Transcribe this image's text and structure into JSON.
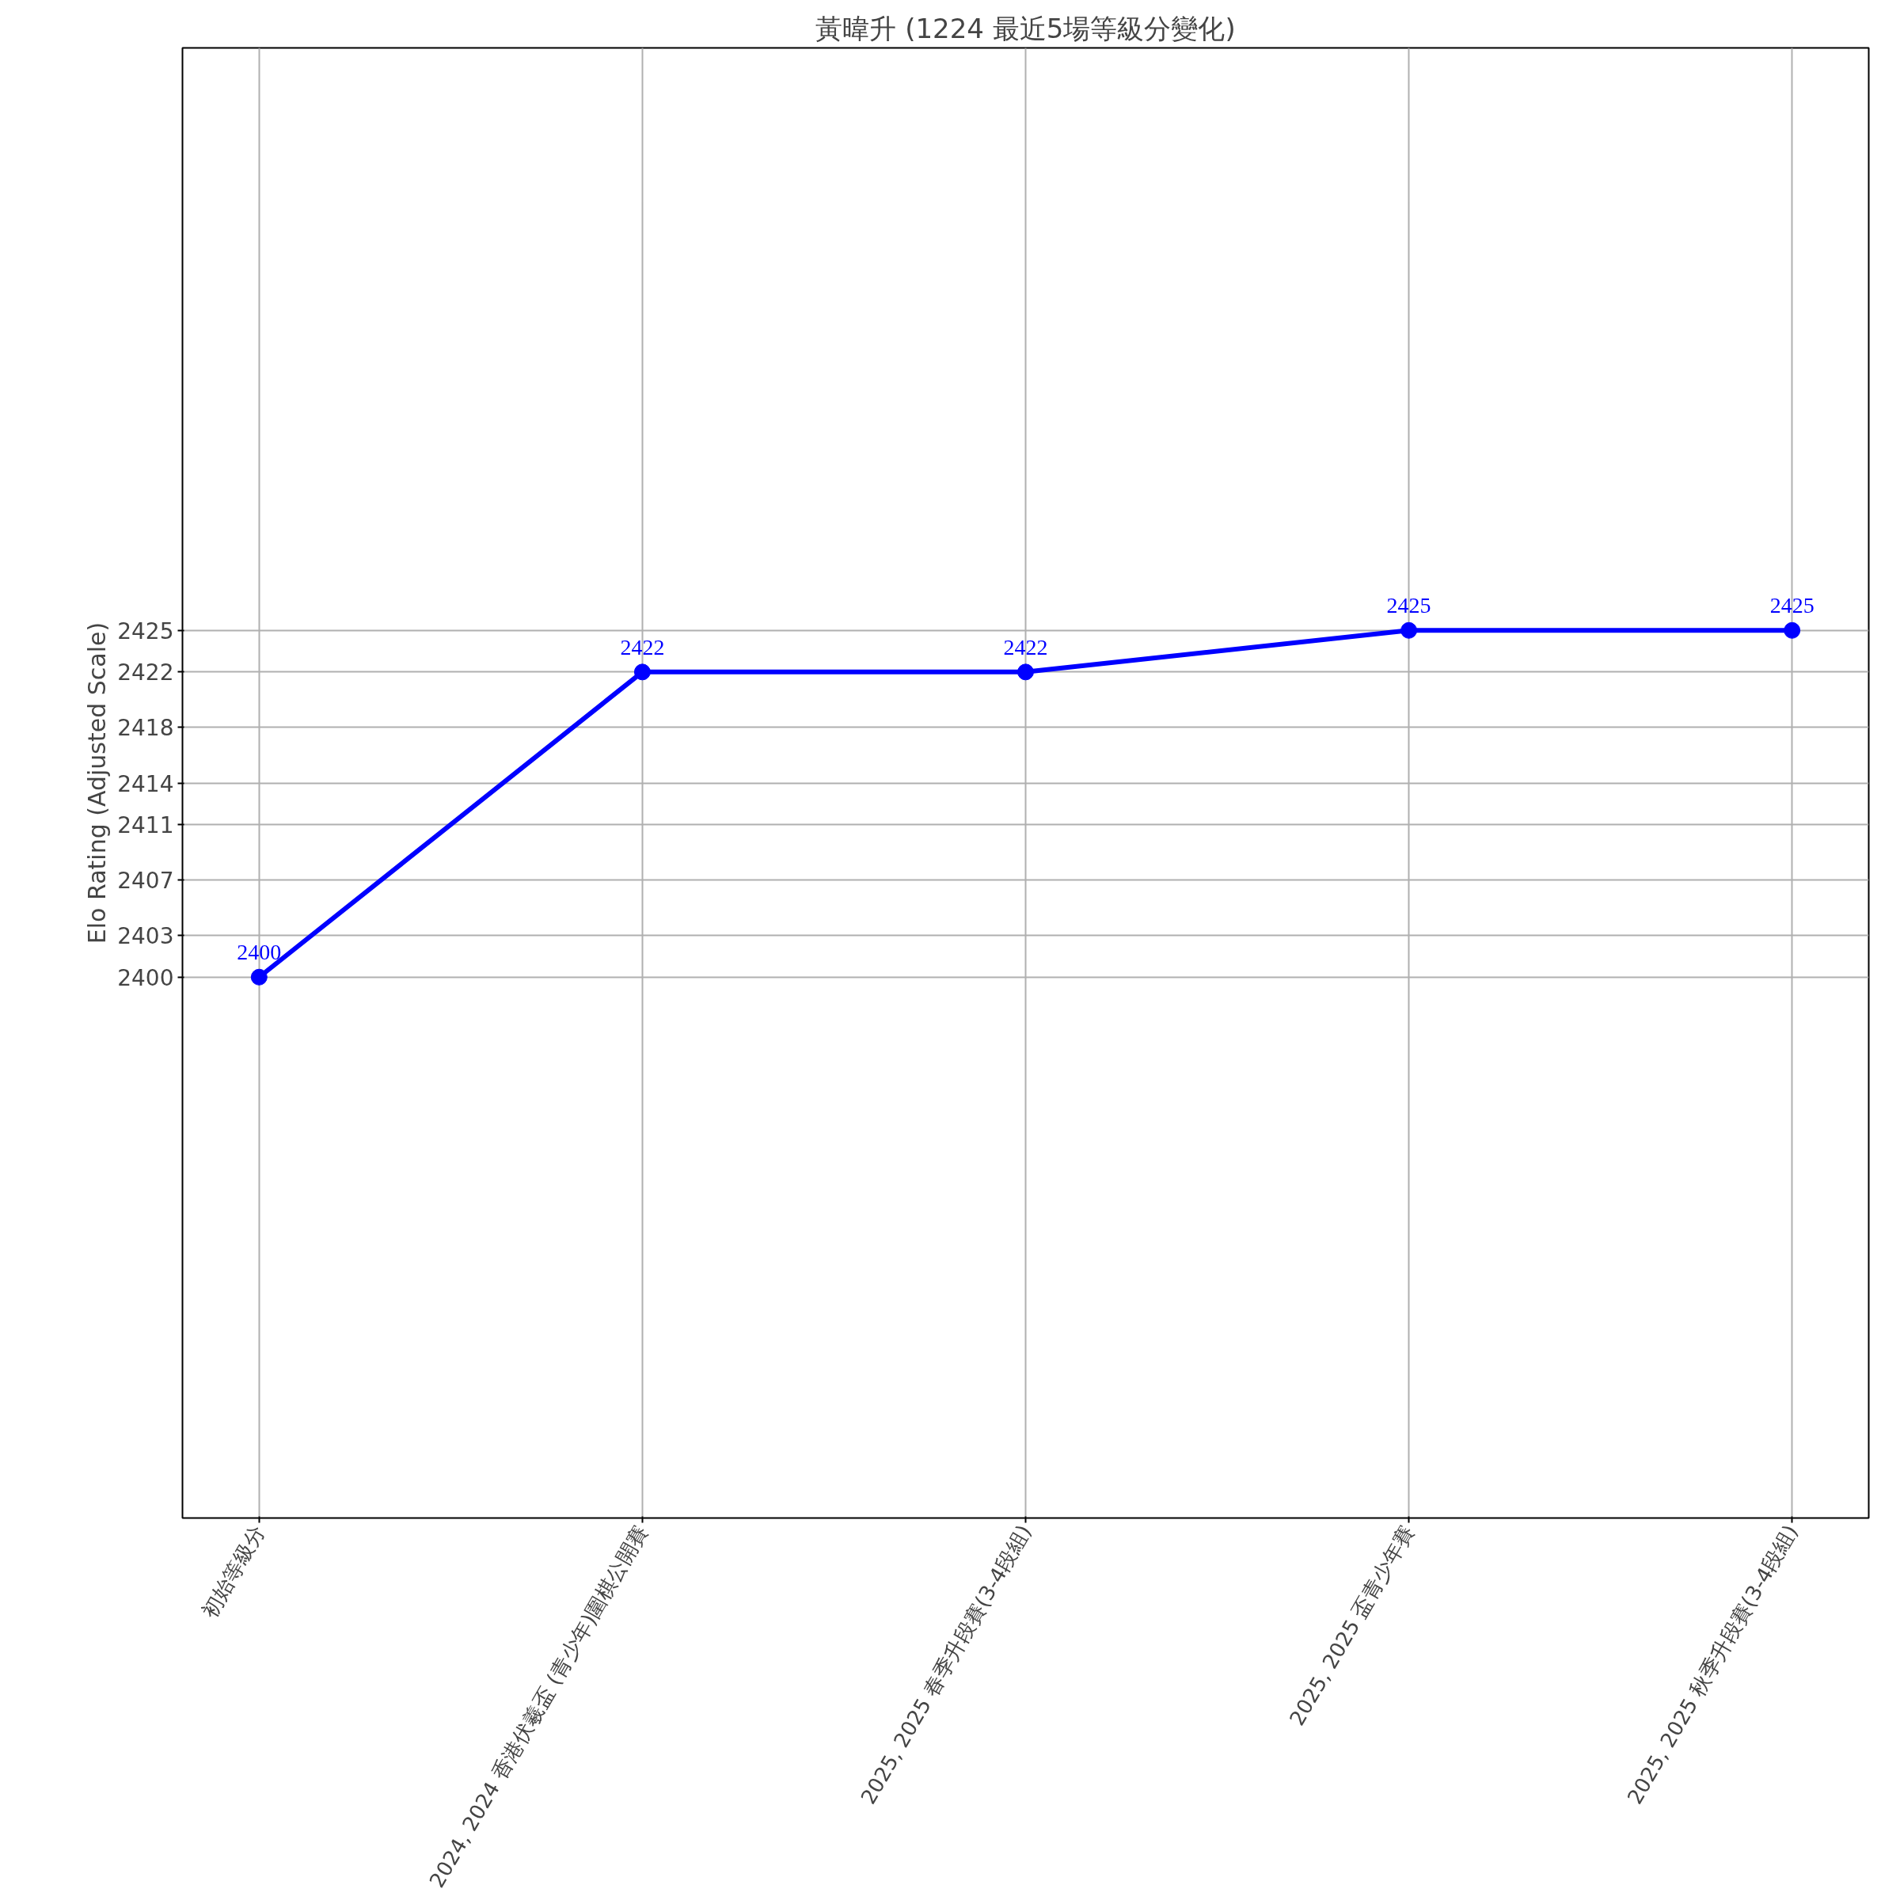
{
  "chart_data": {
    "type": "line",
    "title": "黃暐升 (1224 最近5場等級分變化)",
    "ylabel": "Elo Rating (Adjusted Scale)",
    "categories": [
      "初始等級分",
      "2024, 2024 香港伏羲盃 (青少年)圍棋公開賽",
      "2025, 2025 春季升段賽(3-4段組)",
      "2025, 2025 盃青少年賽",
      "2025, 2025 秋季升段賽(3-4段組)"
    ],
    "series": [
      {
        "color": "#0000ff",
        "values": [
          2400,
          2422,
          2422,
          2425,
          2425
        ]
      }
    ],
    "ylim": [
      2361,
      2467
    ],
    "yticks": [
      2400,
      2403,
      2407,
      2411,
      2414,
      2418,
      2422,
      2425
    ],
    "grid": true,
    "marker": "circle",
    "line_style": "solid",
    "data_labels": true
  }
}
